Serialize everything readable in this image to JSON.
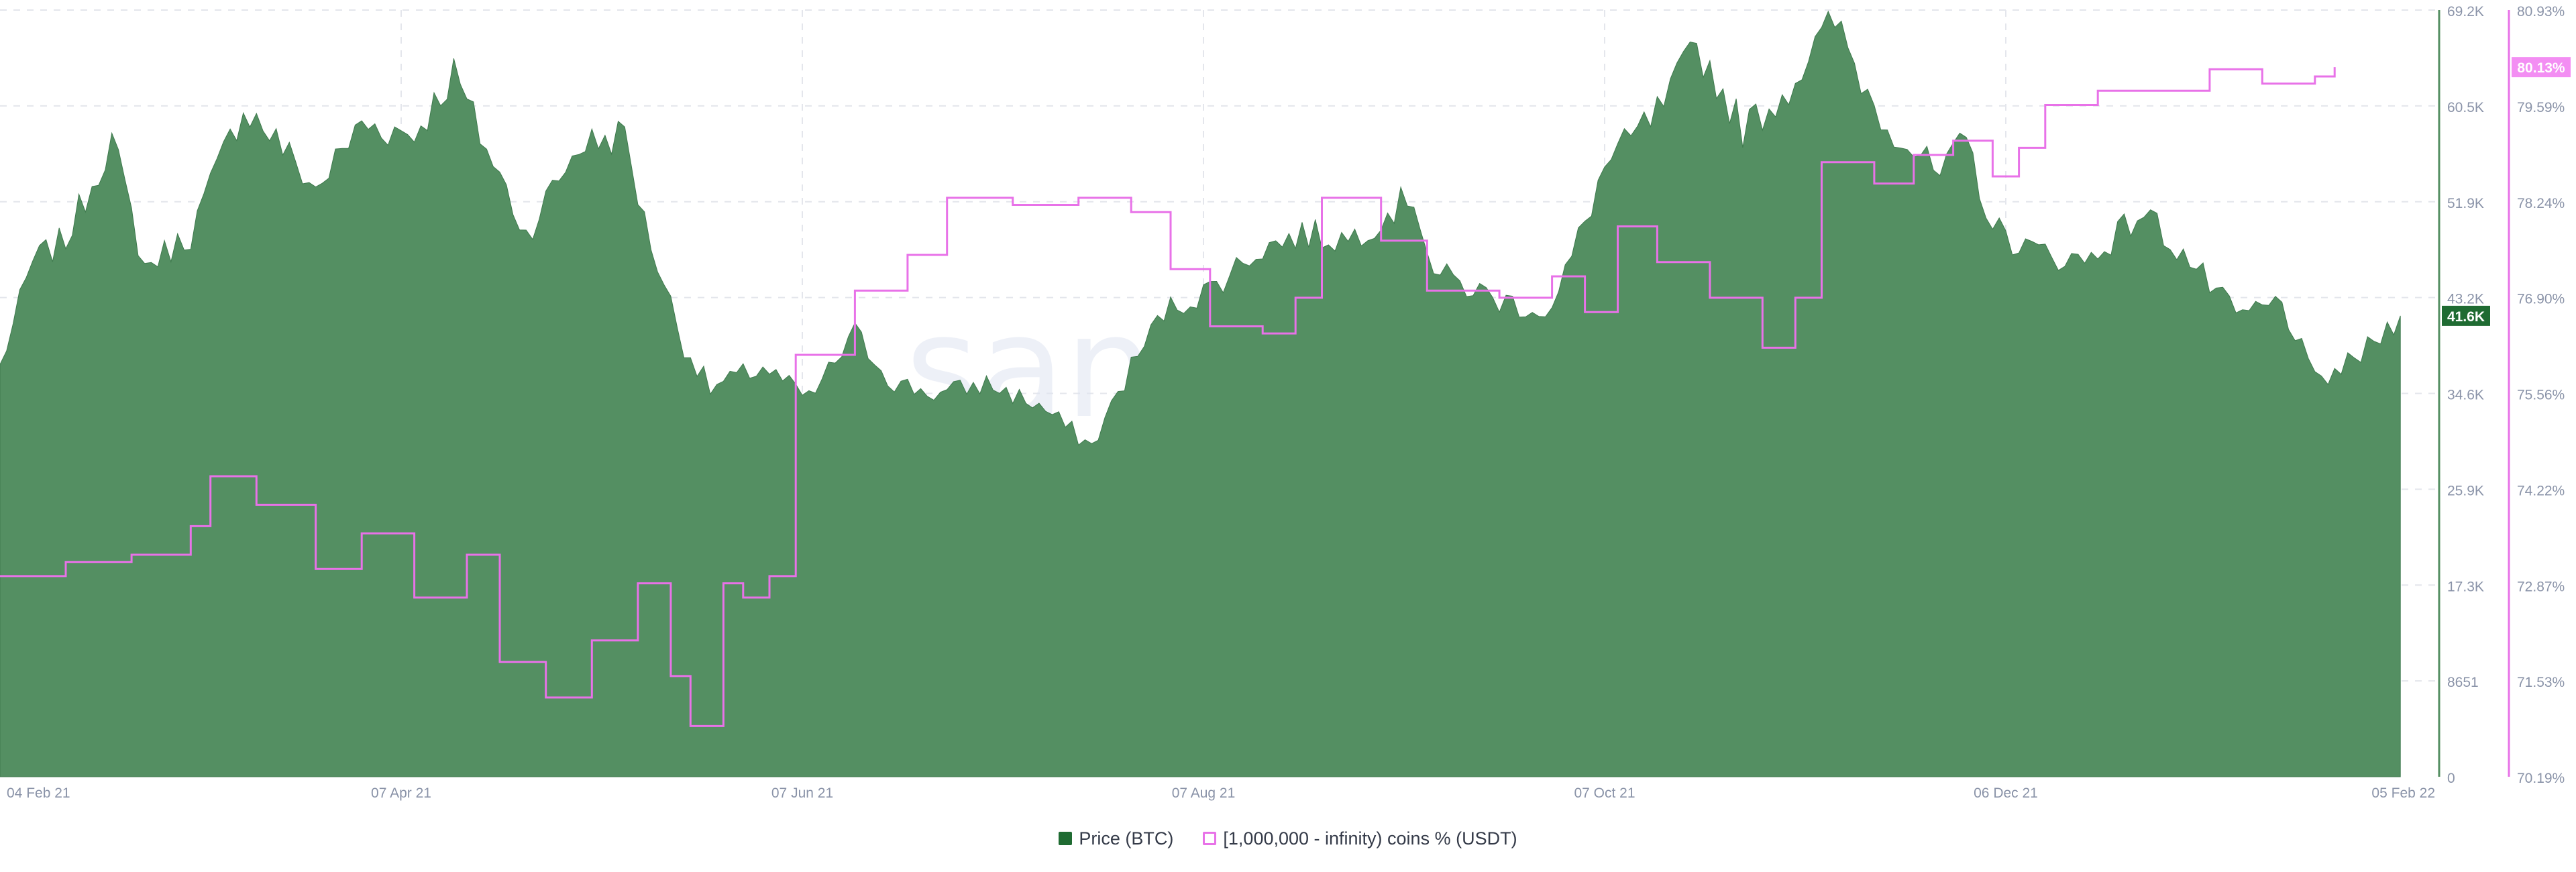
{
  "watermark": "santiment",
  "chart_data": {
    "type": "area",
    "x_tick_labels": [
      "04 Feb 21",
      "07 Apr 21",
      "07 Jun 21",
      "07 Aug 21",
      "07 Oct 21",
      "06 Dec 21",
      "05 Feb 22"
    ],
    "x_range": [
      "2021-02-04",
      "2022-02-05"
    ],
    "grid": true,
    "legend_position": "bottom-center",
    "y_left": {
      "tick_labels": [
        "69.2K",
        "60.5K",
        "51.9K",
        "43.2K",
        "34.6K",
        "25.9K",
        "17.3K",
        "8651",
        "0"
      ],
      "ylim": [
        0,
        69200
      ],
      "current_label": "41.6K"
    },
    "y_right": {
      "tick_labels": [
        "80.93%",
        "79.59%",
        "78.24%",
        "76.90%",
        "75.56%",
        "74.22%",
        "72.87%",
        "71.53%",
        "70.19%"
      ],
      "ylim": [
        70.19,
        80.93
      ],
      "current_label": "80.13%"
    },
    "series": [
      {
        "name": "Price (BTC)",
        "type": "area",
        "axis": "left",
        "color": "#548f62",
        "points": [
          [
            "2021-02-04",
            37000
          ],
          [
            "2021-02-09",
            46500
          ],
          [
            "2021-02-14",
            48500
          ],
          [
            "2021-02-21",
            57500
          ],
          [
            "2021-02-26",
            46000
          ],
          [
            "2021-03-05",
            49000
          ],
          [
            "2021-03-13",
            60500
          ],
          [
            "2021-03-18",
            57500
          ],
          [
            "2021-03-24",
            53000
          ],
          [
            "2021-03-31",
            58900
          ],
          [
            "2021-04-08",
            58000
          ],
          [
            "2021-04-14",
            63500
          ],
          [
            "2021-04-18",
            58000
          ],
          [
            "2021-04-25",
            49000
          ],
          [
            "2021-05-03",
            57000
          ],
          [
            "2021-05-10",
            58000
          ],
          [
            "2021-05-13",
            50000
          ],
          [
            "2021-05-19",
            39000
          ],
          [
            "2021-05-23",
            35000
          ],
          [
            "2021-05-31",
            37000
          ],
          [
            "2021-06-07",
            34000
          ],
          [
            "2021-06-14",
            40000
          ],
          [
            "2021-06-20",
            35500
          ],
          [
            "2021-06-27",
            34500
          ],
          [
            "2021-07-04",
            35500
          ],
          [
            "2021-07-12",
            33500
          ],
          [
            "2021-07-20",
            29800
          ],
          [
            "2021-07-26",
            37000
          ],
          [
            "2021-07-31",
            42000
          ],
          [
            "2021-08-07",
            44000
          ],
          [
            "2021-08-14",
            47500
          ],
          [
            "2021-08-21",
            49000
          ],
          [
            "2021-08-28",
            48500
          ],
          [
            "2021-09-07",
            52500
          ],
          [
            "2021-09-10",
            45500
          ],
          [
            "2021-09-20",
            43000
          ],
          [
            "2021-09-28",
            42000
          ],
          [
            "2021-10-06",
            55000
          ],
          [
            "2021-10-15",
            60500
          ],
          [
            "2021-10-20",
            66000
          ],
          [
            "2021-10-27",
            58500
          ],
          [
            "2021-11-02",
            61500
          ],
          [
            "2021-11-10",
            68200
          ],
          [
            "2021-11-16",
            60500
          ],
          [
            "2021-11-26",
            54000
          ],
          [
            "2021-11-30",
            57500
          ],
          [
            "2021-12-04",
            49500
          ],
          [
            "2021-12-10",
            47500
          ],
          [
            "2021-12-18",
            46500
          ],
          [
            "2021-12-27",
            51000
          ],
          [
            "2022-01-03",
            46500
          ],
          [
            "2022-01-10",
            41500
          ],
          [
            "2022-01-17",
            42800
          ],
          [
            "2022-01-22",
            35500
          ],
          [
            "2022-01-28",
            37500
          ],
          [
            "2022-02-04",
            41600
          ]
        ]
      },
      {
        "name": "[1,000,000 - infinity) coins % (USDT)",
        "type": "line",
        "axis": "right",
        "color": "#e872e8",
        "points": [
          [
            "2021-02-04",
            73.0
          ],
          [
            "2021-02-14",
            73.2
          ],
          [
            "2021-02-24",
            73.3
          ],
          [
            "2021-03-05",
            73.7
          ],
          [
            "2021-03-08",
            74.4
          ],
          [
            "2021-03-15",
            74.0
          ],
          [
            "2021-03-24",
            73.1
          ],
          [
            "2021-03-31",
            73.6
          ],
          [
            "2021-04-08",
            72.7
          ],
          [
            "2021-04-16",
            73.3
          ],
          [
            "2021-04-21",
            71.8
          ],
          [
            "2021-04-28",
            71.3
          ],
          [
            "2021-05-05",
            72.1
          ],
          [
            "2021-05-12",
            72.9
          ],
          [
            "2021-05-17",
            71.6
          ],
          [
            "2021-05-20",
            70.9
          ],
          [
            "2021-05-25",
            72.9
          ],
          [
            "2021-05-28",
            72.7
          ],
          [
            "2021-06-01",
            73.0
          ],
          [
            "2021-06-05",
            76.1
          ],
          [
            "2021-06-10",
            76.1
          ],
          [
            "2021-06-14",
            77.0
          ],
          [
            "2021-06-22",
            77.5
          ],
          [
            "2021-06-28",
            78.3
          ],
          [
            "2021-07-08",
            78.2
          ],
          [
            "2021-07-18",
            78.3
          ],
          [
            "2021-07-26",
            78.1
          ],
          [
            "2021-08-01",
            77.3
          ],
          [
            "2021-08-07",
            76.5
          ],
          [
            "2021-08-15",
            76.4
          ],
          [
            "2021-08-20",
            76.9
          ],
          [
            "2021-08-24",
            78.3
          ],
          [
            "2021-09-02",
            77.7
          ],
          [
            "2021-09-09",
            77.0
          ],
          [
            "2021-09-20",
            76.9
          ],
          [
            "2021-09-28",
            77.2
          ],
          [
            "2021-10-03",
            76.7
          ],
          [
            "2021-10-08",
            77.9
          ],
          [
            "2021-10-14",
            77.4
          ],
          [
            "2021-10-22",
            76.9
          ],
          [
            "2021-10-30",
            76.2
          ],
          [
            "2021-11-04",
            76.9
          ],
          [
            "2021-11-08",
            78.8
          ],
          [
            "2021-11-16",
            78.5
          ],
          [
            "2021-11-22",
            78.9
          ],
          [
            "2021-11-28",
            79.1
          ],
          [
            "2021-12-04",
            78.6
          ],
          [
            "2021-12-08",
            79.0
          ],
          [
            "2021-12-12",
            79.6
          ],
          [
            "2021-12-20",
            79.8
          ],
          [
            "2021-12-30",
            79.8
          ],
          [
            "2022-01-06",
            80.1
          ],
          [
            "2022-01-14",
            79.9
          ],
          [
            "2022-01-22",
            80.0
          ],
          [
            "2022-01-25",
            80.13
          ]
        ]
      }
    ]
  },
  "legend": {
    "items": [
      {
        "label": "Price (BTC)",
        "color": "#1f6b32"
      },
      {
        "label": "[1,000,000 - infinity) coins % (USDT)",
        "color": "#e872e8"
      }
    ]
  }
}
